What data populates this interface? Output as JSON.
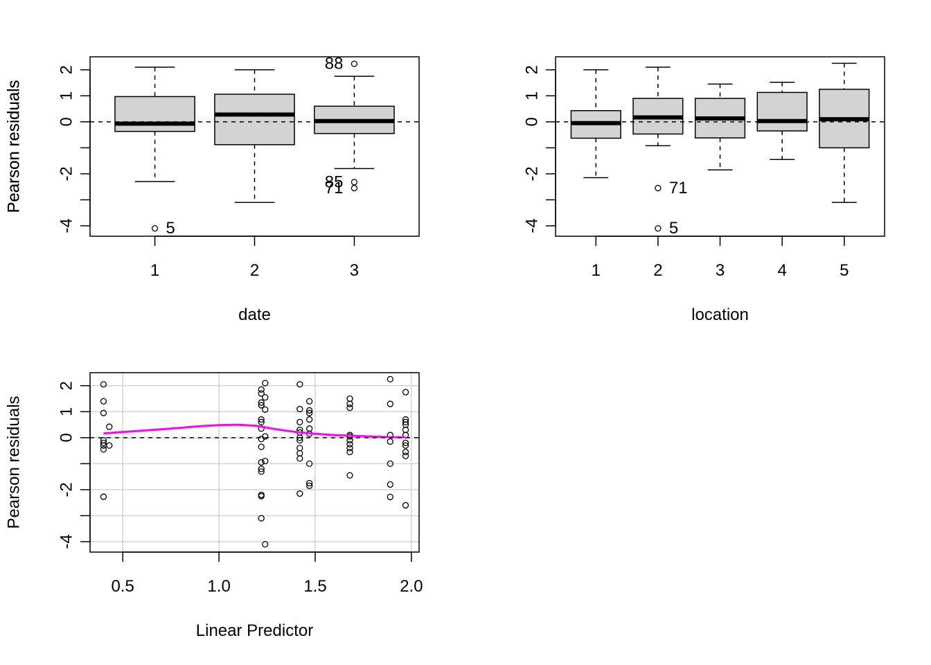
{
  "chart_data": [
    {
      "type": "box",
      "ylabel": "Pearson residuals",
      "xlabel": "date",
      "categories": [
        "1",
        "2",
        "3"
      ],
      "ylim": [
        -4.4,
        2.5
      ],
      "yticks": [
        -4,
        -3,
        -2,
        -1,
        0,
        1,
        2
      ],
      "ytick_labels": [
        "-4",
        "",
        "-2",
        "",
        "0",
        "1",
        "2"
      ],
      "boxes": [
        {
          "category": "1",
          "low": -2.3,
          "q1": -0.37,
          "median": -0.07,
          "q3": 0.97,
          "high": 2.1
        },
        {
          "category": "2",
          "low": -3.1,
          "q1": -0.88,
          "median": 0.28,
          "q3": 1.06,
          "high": 2.0
        },
        {
          "category": "3",
          "low": -1.8,
          "q1": -0.45,
          "median": 0.03,
          "q3": 0.6,
          "high": 1.75
        }
      ],
      "outliers": [
        {
          "category": "1",
          "y": -4.1,
          "label": "5"
        },
        {
          "category": "3",
          "y": 2.23,
          "label": "88"
        },
        {
          "category": "3",
          "y": -2.32,
          "label": "85"
        },
        {
          "category": "3",
          "y": -2.55,
          "label": "71"
        }
      ],
      "reference_line": 0
    },
    {
      "type": "box",
      "ylabel": "Pearson residuals",
      "xlabel": "location",
      "categories": [
        "1",
        "2",
        "3",
        "4",
        "5"
      ],
      "ylim": [
        -4.4,
        2.5
      ],
      "yticks": [
        -4,
        -3,
        -2,
        -1,
        0,
        1,
        2
      ],
      "ytick_labels": [
        "-4",
        "",
        "-2",
        "",
        "0",
        "1",
        "2"
      ],
      "boxes": [
        {
          "category": "1",
          "low": -2.15,
          "q1": -0.63,
          "median": -0.05,
          "q3": 0.43,
          "high": 2.0
        },
        {
          "category": "2",
          "low": -0.92,
          "q1": -0.47,
          "median": 0.17,
          "q3": 0.9,
          "high": 2.1
        },
        {
          "category": "3",
          "low": -1.85,
          "q1": -0.62,
          "median": 0.13,
          "q3": 0.9,
          "high": 1.45
        },
        {
          "category": "4",
          "low": -1.45,
          "q1": -0.35,
          "median": 0.03,
          "q3": 1.13,
          "high": 1.52
        },
        {
          "category": "5",
          "low": -3.1,
          "q1": -1.0,
          "median": 0.1,
          "q3": 1.25,
          "high": 2.25
        }
      ],
      "outliers": [
        {
          "category": "2",
          "y": -2.55,
          "label": "71"
        },
        {
          "category": "2",
          "y": -4.1,
          "label": "5"
        }
      ],
      "reference_line": 0
    },
    {
      "type": "scatter",
      "ylabel": "Pearson residuals",
      "xlabel": "Linear Predictor",
      "xlim": [
        0.33,
        2.04
      ],
      "ylim": [
        -4.4,
        2.5
      ],
      "xticks": [
        0.5,
        1.0,
        1.5,
        2.0
      ],
      "xtick_labels": [
        "0.5",
        "1.0",
        "1.5",
        "2.0"
      ],
      "yticks": [
        -4,
        -3,
        -2,
        -1,
        0,
        1,
        2
      ],
      "ytick_labels": [
        "-4",
        "",
        "-2",
        "",
        "0",
        "1",
        "2"
      ],
      "grid": true,
      "reference_line": 0,
      "points": [
        [
          0.4,
          2.05
        ],
        [
          0.4,
          1.4
        ],
        [
          0.4,
          0.95
        ],
        [
          0.4,
          -0.1
        ],
        [
          0.4,
          -0.2
        ],
        [
          0.4,
          -0.3
        ],
        [
          0.4,
          -0.45
        ],
        [
          0.4,
          -2.27
        ],
        [
          0.43,
          0.42
        ],
        [
          0.43,
          -0.3
        ],
        [
          1.22,
          1.85
        ],
        [
          1.22,
          1.7
        ],
        [
          1.22,
          1.35
        ],
        [
          1.22,
          1.25
        ],
        [
          1.22,
          0.7
        ],
        [
          1.22,
          0.6
        ],
        [
          1.22,
          0.35
        ],
        [
          1.22,
          -0.05
        ],
        [
          1.22,
          -0.35
        ],
        [
          1.22,
          -0.95
        ],
        [
          1.22,
          -1.2
        ],
        [
          1.22,
          -1.3
        ],
        [
          1.22,
          -2.2
        ],
        [
          1.22,
          -2.25
        ],
        [
          1.22,
          -3.1
        ],
        [
          1.24,
          2.1
        ],
        [
          1.24,
          1.55
        ],
        [
          1.24,
          1.08
        ],
        [
          1.24,
          0.05
        ],
        [
          1.24,
          -0.9
        ],
        [
          1.24,
          -4.1
        ],
        [
          1.42,
          2.05
        ],
        [
          1.42,
          1.1
        ],
        [
          1.42,
          0.6
        ],
        [
          1.42,
          0.3
        ],
        [
          1.42,
          0.2
        ],
        [
          1.42,
          0.0
        ],
        [
          1.42,
          -0.1
        ],
        [
          1.42,
          -0.4
        ],
        [
          1.42,
          -0.6
        ],
        [
          1.42,
          -0.8
        ],
        [
          1.42,
          -2.15
        ],
        [
          1.47,
          1.4
        ],
        [
          1.47,
          1.05
        ],
        [
          1.47,
          0.95
        ],
        [
          1.47,
          0.7
        ],
        [
          1.47,
          0.35
        ],
        [
          1.47,
          0.15
        ],
        [
          1.47,
          -1.0
        ],
        [
          1.47,
          -1.75
        ],
        [
          1.47,
          -1.85
        ],
        [
          1.68,
          1.5
        ],
        [
          1.68,
          1.3
        ],
        [
          1.68,
          1.15
        ],
        [
          1.68,
          0.1
        ],
        [
          1.68,
          0.05
        ],
        [
          1.68,
          -0.1
        ],
        [
          1.68,
          -0.25
        ],
        [
          1.68,
          -0.4
        ],
        [
          1.68,
          -0.55
        ],
        [
          1.68,
          -1.45
        ],
        [
          1.89,
          2.25
        ],
        [
          1.89,
          1.3
        ],
        [
          1.89,
          0.1
        ],
        [
          1.89,
          -0.15
        ],
        [
          1.89,
          -1.0
        ],
        [
          1.89,
          -1.8
        ],
        [
          1.89,
          -2.28
        ],
        [
          1.97,
          1.75
        ],
        [
          1.97,
          0.7
        ],
        [
          1.97,
          0.6
        ],
        [
          1.97,
          0.5
        ],
        [
          1.97,
          0.3
        ],
        [
          1.97,
          0.1
        ],
        [
          1.97,
          -0.2
        ],
        [
          1.97,
          -0.3
        ],
        [
          1.97,
          -0.55
        ],
        [
          1.97,
          -0.7
        ],
        [
          1.97,
          -2.6
        ]
      ],
      "smooth": {
        "color": "#ff00ff",
        "x": [
          0.4,
          0.5,
          0.6,
          0.7,
          0.8,
          0.9,
          1.0,
          1.1,
          1.2,
          1.3,
          1.4,
          1.5,
          1.6,
          1.7,
          1.8,
          1.9,
          1.97
        ],
        "y": [
          0.16,
          0.22,
          0.27,
          0.32,
          0.38,
          0.44,
          0.48,
          0.5,
          0.45,
          0.32,
          0.22,
          0.15,
          0.1,
          0.07,
          0.04,
          0.02,
          0.02
        ]
      }
    }
  ]
}
